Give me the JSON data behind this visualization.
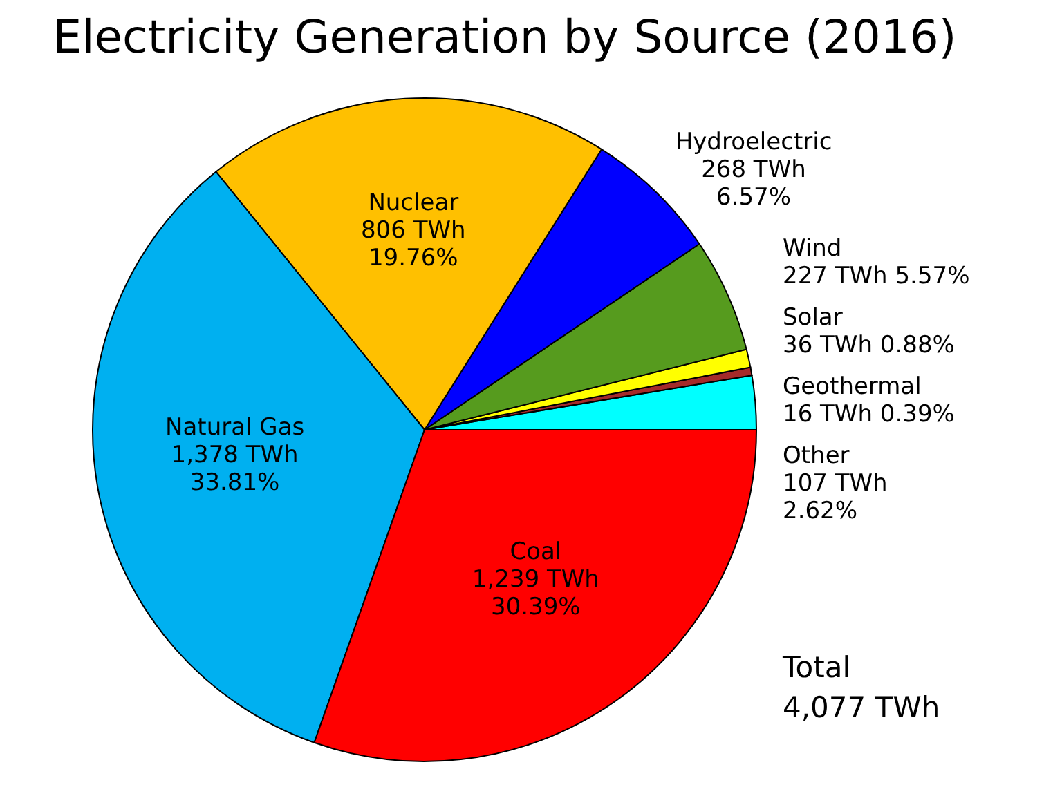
{
  "chart_data": {
    "type": "pie",
    "title": "Electricity Generation by Source (2016)",
    "categories": [
      "Other",
      "Geothermal",
      "Solar",
      "Wind",
      "Hydroelectric",
      "Nuclear",
      "Natural Gas",
      "Coal"
    ],
    "values": [
      107,
      16,
      36,
      227,
      268,
      806,
      1378,
      1239
    ],
    "colors": [
      "#00ffff",
      "#a52a2a",
      "#ffff00",
      "#569b1e",
      "#0000ff",
      "#ffc000",
      "#00b0f0",
      "#ff0000"
    ],
    "value_labels": [
      "107 TWh\n2.62%",
      "16 TWh 0.39%",
      "36 TWh 0.88%",
      "227 TWh 5.57%",
      "268 TWh\n6.57%",
      "806 TWh\n19.76%",
      "1,378 TWh\n33.81%",
      "1,239 TWh\n30.39%"
    ],
    "annotations": [
      "Total\n4,077 TWh"
    ]
  }
}
